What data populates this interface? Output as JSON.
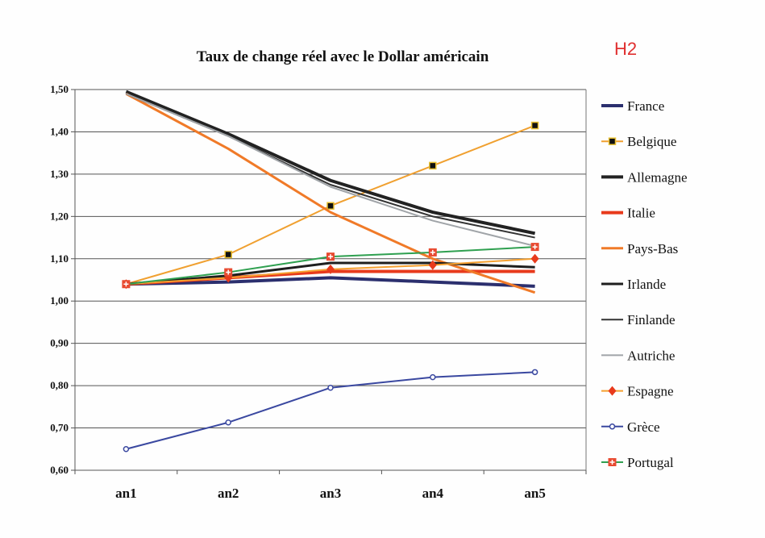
{
  "note": "H2",
  "chart_data": {
    "type": "line",
    "title": "Taux de change réel avec le Dollar américain",
    "xlabel": "",
    "ylabel": "",
    "categories": [
      "an1",
      "an2",
      "an3",
      "an4",
      "an5"
    ],
    "ylim": [
      0.6,
      1.5
    ],
    "yticks": [
      "0,60",
      "0,70",
      "0,80",
      "0,90",
      "1,00",
      "1,10",
      "1,20",
      "1,30",
      "1,40",
      "1,50"
    ],
    "grid": true,
    "legend": "right",
    "series": [
      {
        "name": "France",
        "color": "#2b2f6e",
        "width": 4,
        "marker": "none",
        "values": [
          1.04,
          1.045,
          1.055,
          1.045,
          1.035
        ]
      },
      {
        "name": "Belgique",
        "color": "#f0a030",
        "width": 2,
        "marker": "square",
        "values": [
          1.04,
          1.11,
          1.225,
          1.32,
          1.415
        ]
      },
      {
        "name": "Allemagne",
        "color": "#222222",
        "width": 4,
        "marker": "none",
        "values": [
          1.495,
          1.395,
          1.285,
          1.21,
          1.16
        ]
      },
      {
        "name": "Italie",
        "color": "#e83a1c",
        "width": 4,
        "marker": "none",
        "values": [
          1.04,
          1.055,
          1.07,
          1.07,
          1.07
        ]
      },
      {
        "name": "Pays-Bas",
        "color": "#f07a28",
        "width": 3,
        "marker": "none",
        "values": [
          1.49,
          1.36,
          1.21,
          1.1,
          1.02
        ]
      },
      {
        "name": "Irlande",
        "color": "#1e1e1e",
        "width": 3,
        "marker": "none",
        "values": [
          1.04,
          1.06,
          1.09,
          1.09,
          1.08
        ]
      },
      {
        "name": "Finlande",
        "color": "#333333",
        "width": 2,
        "marker": "none",
        "values": [
          1.49,
          1.39,
          1.275,
          1.2,
          1.15
        ]
      },
      {
        "name": "Autriche",
        "color": "#a0a4a8",
        "width": 2,
        "marker": "none",
        "values": [
          1.49,
          1.39,
          1.27,
          1.19,
          1.13
        ]
      },
      {
        "name": "Espagne",
        "color": "#f5a030",
        "width": 2,
        "marker": "diamond",
        "values": [
          1.04,
          1.055,
          1.075,
          1.085,
          1.1
        ]
      },
      {
        "name": "Grèce",
        "color": "#3a48a0",
        "width": 2,
        "marker": "circle",
        "values": [
          0.65,
          0.713,
          0.795,
          0.82,
          0.832
        ]
      },
      {
        "name": "Portugal",
        "color": "#2fa050",
        "width": 2,
        "marker": "plus",
        "values": [
          1.04,
          1.068,
          1.105,
          1.115,
          1.128
        ]
      }
    ]
  }
}
